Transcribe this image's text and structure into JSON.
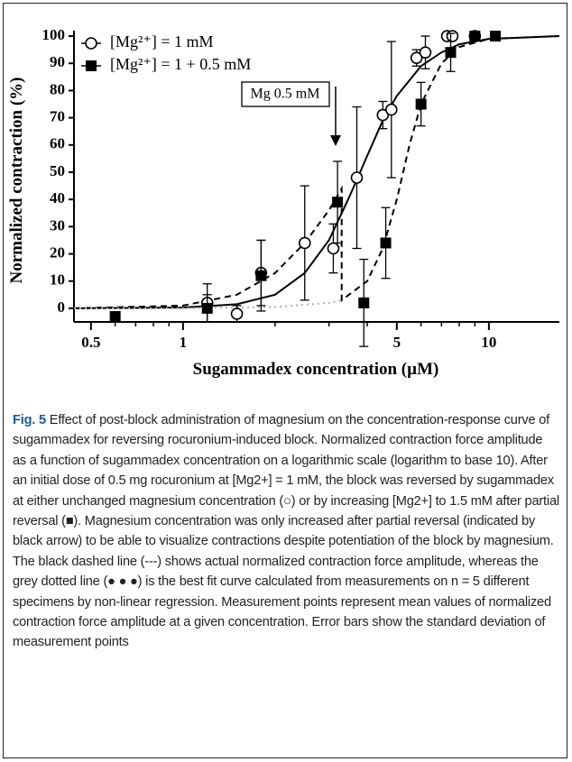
{
  "chart_data": {
    "type": "scatter",
    "y_label": "Normalized contraction (%)",
    "x_label": "Sugammadex concentration (µM)",
    "x_log": true,
    "xlim": [
      0.44,
      17
    ],
    "xticks": [
      0.5,
      1,
      5,
      10
    ],
    "xminorticks": [
      0.6,
      0.7,
      0.8,
      0.9,
      2,
      3,
      4,
      6,
      7,
      8,
      9
    ],
    "ylim": [
      -5,
      102
    ],
    "yticks": [
      0,
      10,
      20,
      30,
      40,
      50,
      60,
      70,
      80,
      90,
      100
    ],
    "annotation": "Mg 0.5 mM",
    "series": [
      {
        "name": "[Mg²⁺] = 1 mM",
        "marker": "open-circle",
        "color": "#000000",
        "x": [
          1.2,
          1.5,
          1.8,
          2.5,
          3.1,
          3.7,
          4.5,
          4.8,
          5.8,
          6.2,
          7.3,
          7.6,
          9
        ],
        "values": [
          2,
          -2,
          13,
          24,
          22,
          48,
          71,
          73,
          92,
          94,
          100,
          100,
          100
        ],
        "errors": [
          7,
          3,
          12,
          21,
          9,
          26,
          5,
          25,
          3,
          6,
          null,
          null,
          null
        ]
      },
      {
        "name": "[Mg²⁺] = 1 + 0.5 mM",
        "marker": "filled-square",
        "color": "#000000",
        "x": [
          0.6,
          1.2,
          1.8,
          3.2,
          3.9,
          4.6,
          6.0,
          7.5,
          9,
          10.5
        ],
        "values": [
          -3,
          0,
          12,
          39,
          2,
          24,
          75,
          94,
          100,
          100
        ],
        "errors": [
          null,
          5,
          13,
          15,
          16,
          13,
          8,
          7,
          null,
          null
        ]
      }
    ],
    "curves": [
      {
        "style": "solid",
        "color": "#000000",
        "x": [
          0.44,
          1,
          1.5,
          2,
          2.5,
          3,
          3.5,
          4,
          4.5,
          5,
          6,
          7,
          8,
          10,
          17
        ],
        "values": [
          0,
          0.3,
          1.5,
          5,
          13,
          25,
          41,
          56,
          69,
          78,
          89,
          94,
          97,
          99,
          100
        ]
      },
      {
        "style": "dashed",
        "color": "#000000",
        "x": [
          0.44,
          1,
          1.5,
          2,
          2.5,
          3,
          3.3,
          3.3,
          4,
          4.5,
          5,
          5.5,
          6,
          7,
          8,
          10,
          17
        ],
        "values": [
          0,
          1,
          5,
          13,
          24,
          36,
          44,
          3,
          10,
          22,
          40,
          60,
          75,
          90,
          96,
          99,
          100
        ]
      },
      {
        "style": "dotted",
        "color": "#b0b0b0",
        "x": [
          0.44,
          1,
          2,
          3,
          3.3
        ],
        "values": [
          0,
          0,
          0.5,
          2,
          3
        ]
      }
    ]
  },
  "caption": {
    "label": "Fig. 5",
    "text": "Effect of post-block administration of magnesium on the concentration-response curve of sugammadex for reversing rocuronium-induced block. Normalized contraction force amplitude as a function of sugammadex concentration on a logarithmic scale (logarithm to base 10). After an initial dose of 0.5 mg rocuronium at [Mg2+] = 1 mM, the block was reversed by sugammadex at either unchanged magnesium concentration (○) or by increasing [Mg2+] to 1.5 mM after partial reversal (■). Magnesium concentration was only increased after partial reversal (indicated by black arrow) to be able to visualize contractions despite potentiation of the block by magnesium. The black dashed line (---) shows actual normalized contraction force amplitude, whereas the grey dotted line (● ● ●) is the best fit curve calculated from measurements on n = 5 different specimens by non-linear regression. Measurement points represent mean values of normalized contraction force amplitude at a given concentration. Error bars show the standard deviation of measurement points"
  }
}
